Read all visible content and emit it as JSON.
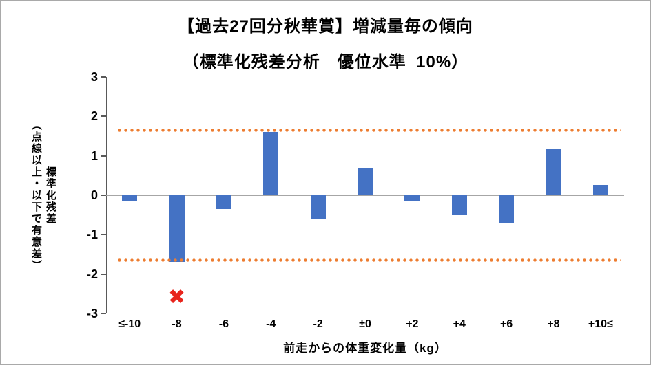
{
  "chart_data": {
    "type": "bar",
    "title": "【過去27回分秋華賞】増減量毎の傾向",
    "subtitle": "（標準化残差分析　優位水準_10%）",
    "categories": [
      "≤-10",
      "-8",
      "-6",
      "-4",
      "-2",
      "±0",
      "+2",
      "+4",
      "+6",
      "+8",
      "+10≤"
    ],
    "values": [
      -0.15,
      -1.7,
      -0.35,
      1.6,
      -0.6,
      0.7,
      -0.15,
      -0.5,
      -0.7,
      1.17,
      0.27
    ],
    "xlabel": "前走からの体重変化量（kg）",
    "ylabel": "標準化残差（点線以上・以下で有意差）",
    "ylabel_main": "標準化残差",
    "ylabel_note": "（点線以上・以下で有意差）",
    "ylim": [
      -3,
      3
    ],
    "yticks": [
      3,
      2,
      1,
      0,
      -1,
      -2,
      -3
    ],
    "grid": false,
    "legend": "none",
    "bar_color": "#4472C4",
    "thresholds": {
      "upper": 1.65,
      "lower": -1.65,
      "style": "dotted",
      "color": "#ED7D31"
    },
    "significance_marks": [
      {
        "category": "-8",
        "value": -2.6,
        "symbol": "✖",
        "color": "#E8251D"
      }
    ]
  }
}
